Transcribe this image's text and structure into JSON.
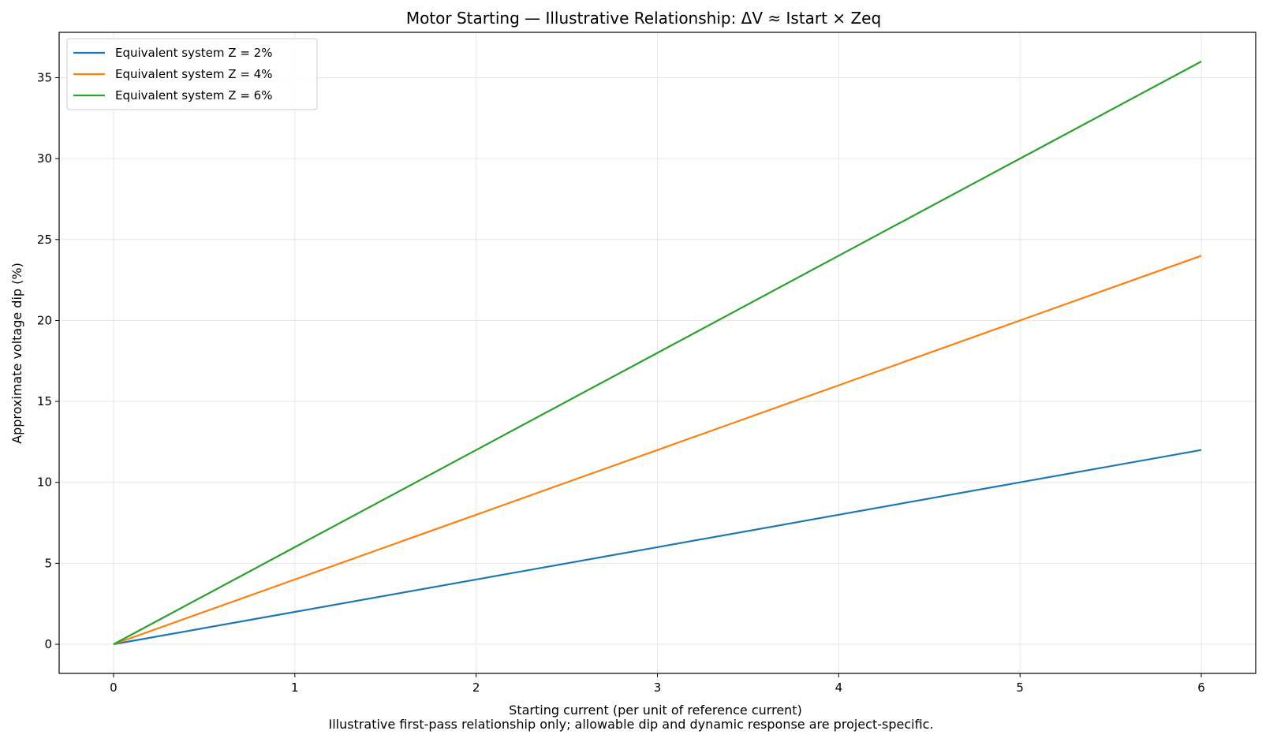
{
  "chart_data": {
    "type": "line",
    "title": "Motor Starting — Illustrative Relationship: ΔV ≈ Istart × Zeq",
    "xlabel": "Starting current (per unit of reference current)",
    "ylabel": "Approximate voltage dip (%)",
    "footnote": "Illustrative first-pass relationship only; allowable dip and dynamic response are project-specific.",
    "x": [
      0,
      1,
      2,
      3,
      4,
      5,
      6
    ],
    "xlim": [
      -0.3,
      6.3
    ],
    "ylim": [
      -1.8,
      37.8
    ],
    "xticks": [
      0,
      1,
      2,
      3,
      4,
      5,
      6
    ],
    "xtick_labels": [
      "0",
      "1",
      "2",
      "3",
      "4",
      "5",
      "6"
    ],
    "yticks": [
      0,
      5,
      10,
      15,
      20,
      25,
      30,
      35
    ],
    "ytick_labels": [
      "0",
      "5",
      "10",
      "15",
      "20",
      "25",
      "30",
      "35"
    ],
    "grid": true,
    "legend_position": "top-left",
    "series": [
      {
        "name": "Equivalent system Z = 2%",
        "color": "#1f77b4",
        "values": [
          0,
          2,
          4,
          6,
          8,
          10,
          12
        ]
      },
      {
        "name": "Equivalent system Z = 4%",
        "color": "#ff7f0e",
        "values": [
          0,
          4,
          8,
          12,
          16,
          20,
          24
        ]
      },
      {
        "name": "Equivalent system Z = 6%",
        "color": "#2ca02c",
        "values": [
          0,
          6,
          12,
          18,
          24,
          30,
          36
        ]
      }
    ]
  }
}
